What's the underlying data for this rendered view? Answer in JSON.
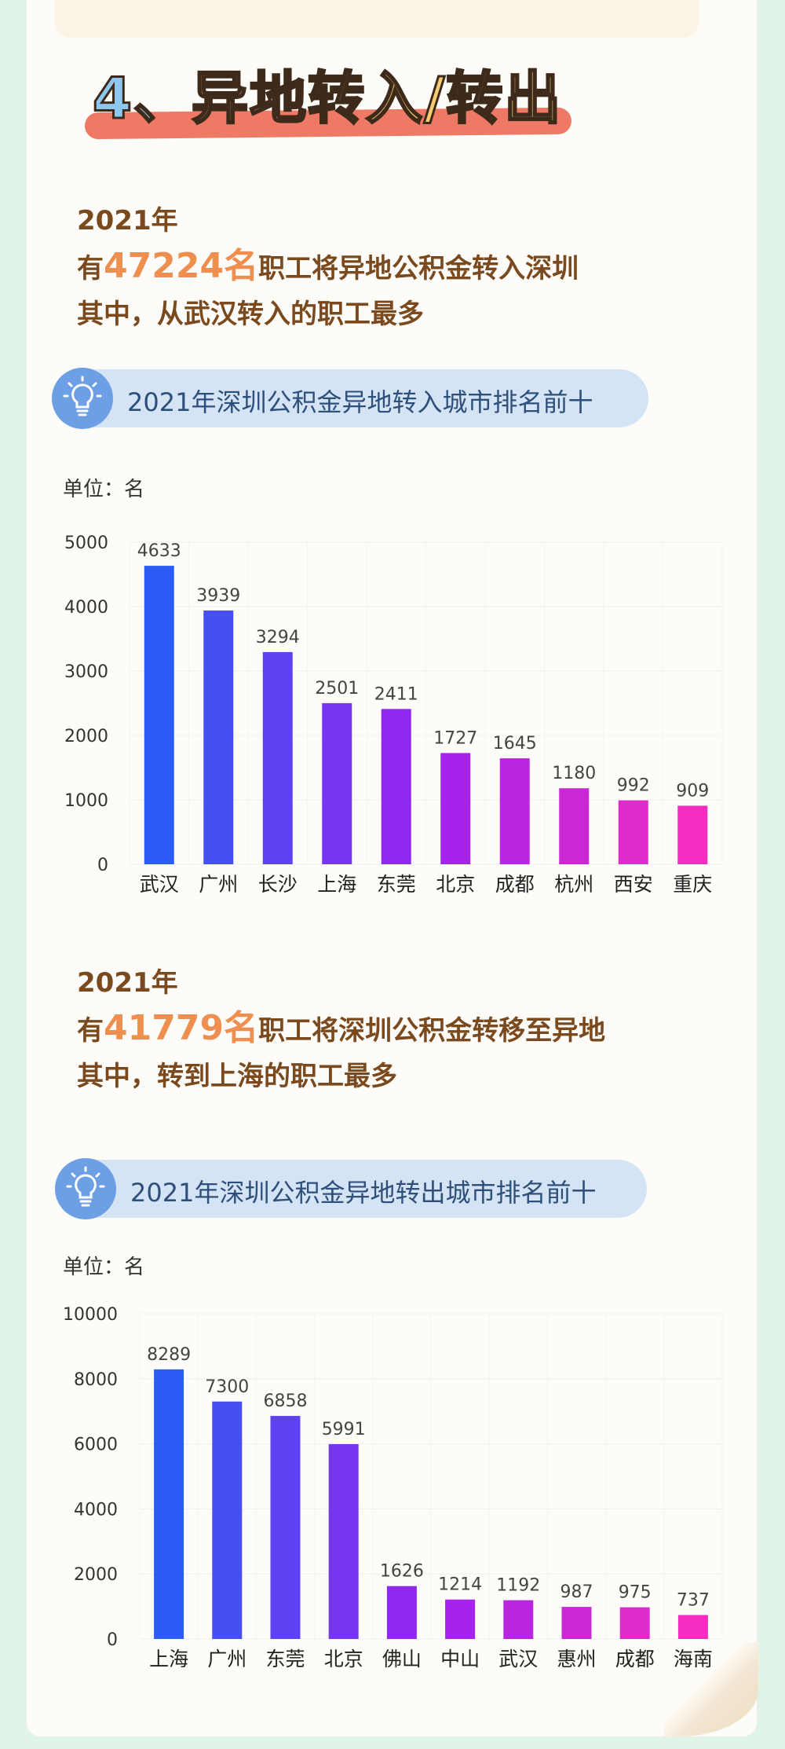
{
  "section": {
    "num": "4、",
    "title": "异地转入/转出"
  },
  "block1": {
    "year": "2021年",
    "line_prefix": "有",
    "count": "47224名",
    "line_suffix": "职工将异地公积金转入深圳",
    "line3": "其中，从武汉转入的职工最多",
    "pill": "2021年深圳公积金异地转入城市排名前十",
    "unit": "单位：名"
  },
  "block2": {
    "year": "2021年",
    "line_prefix": "有",
    "count": "41779名",
    "line_suffix": "职工将深圳公积金转移至异地",
    "line3": "其中，转到上海的职工最多",
    "pill": "2021年深圳公积金异地转出城市排名前十",
    "unit": "单位：名"
  },
  "colors": {
    "bar_start": "#2b5cf5",
    "bar_mid": "#9b22f0",
    "bar_end": "#f22dbf"
  },
  "chart_data": [
    {
      "type": "bar",
      "title": "2021年深圳公积金异地转入城市排名前十",
      "ylabel": "单位：名",
      "categories": [
        "武汉",
        "广州",
        "长沙",
        "上海",
        "东莞",
        "北京",
        "成都",
        "杭州",
        "西安",
        "重庆"
      ],
      "values": [
        4633,
        3939,
        3294,
        2501,
        2411,
        1727,
        1645,
        1180,
        992,
        909
      ],
      "yticks": [
        0,
        1000,
        2000,
        3000,
        4000,
        5000
      ],
      "ylim": [
        0,
        5000
      ],
      "grid": true
    },
    {
      "type": "bar",
      "title": "2021年深圳公积金异地转出城市排名前十",
      "ylabel": "单位：名",
      "categories": [
        "上海",
        "广州",
        "东莞",
        "北京",
        "佛山",
        "中山",
        "武汉",
        "惠州",
        "成都",
        "海南"
      ],
      "values": [
        8289,
        7300,
        6858,
        5991,
        1626,
        1214,
        1192,
        987,
        975,
        737
      ],
      "yticks": [
        0,
        2000,
        4000,
        6000,
        8000,
        10000
      ],
      "ylim": [
        0,
        10000
      ],
      "grid": true
    }
  ]
}
